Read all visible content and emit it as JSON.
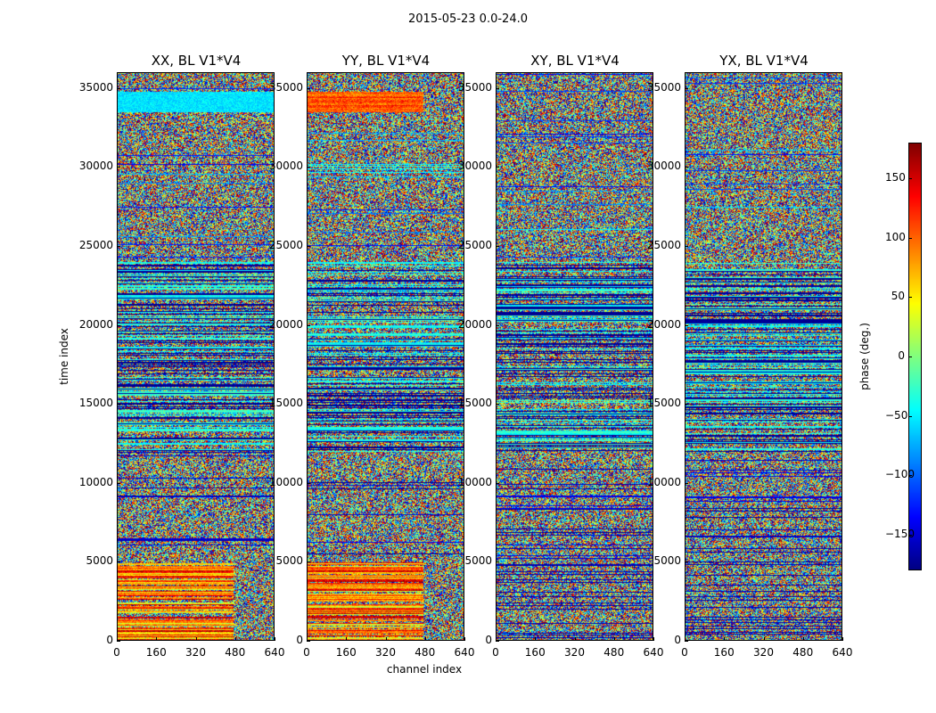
{
  "chart_data": {
    "type": "heatmap",
    "suptitle": "2015-05-23 0.0-24.0",
    "ylabel": "time index",
    "xlabel": "channel index",
    "colorbar_label": "phase (deg.)",
    "colormap": "jet",
    "xlim": [
      0,
      640
    ],
    "ylim": [
      0,
      36000
    ],
    "clim": [
      -180,
      180
    ],
    "x_ticks": [
      0,
      160,
      320,
      480,
      640
    ],
    "y_ticks": [
      0,
      5000,
      10000,
      15000,
      20000,
      25000,
      30000,
      35000
    ],
    "colorbar_ticks": [
      -150,
      -100,
      -50,
      0,
      50,
      100,
      150
    ],
    "x_tick_labels": [
      "0",
      "160",
      "320",
      "480",
      "640"
    ],
    "y_tick_labels": [
      "0",
      "5000",
      "10000",
      "15000",
      "20000",
      "25000",
      "30000",
      "35000"
    ],
    "colorbar_tick_labels": [
      "−150",
      "−100",
      "−50",
      "0",
      "50",
      "100",
      "150"
    ],
    "panels": [
      {
        "title": "XX, BL V1*V4",
        "seed": 11,
        "coherent_low": true
      },
      {
        "title": "YY, BL V1*V4",
        "seed": 23,
        "coherent_low": true
      },
      {
        "title": "XY, BL V1*V4",
        "seed": 37,
        "coherent_low": false
      },
      {
        "title": "YX, BL V1*V4",
        "seed": 53,
        "coherent_low": false
      }
    ]
  }
}
